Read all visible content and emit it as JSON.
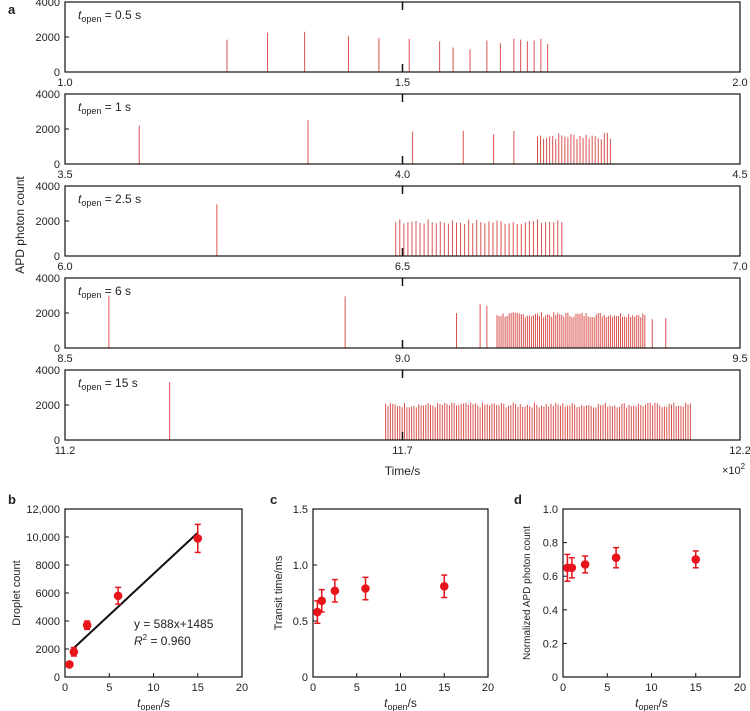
{
  "panel_labels": [
    "a",
    "b",
    "c",
    "d"
  ],
  "chart_data": [
    {
      "panel": "a",
      "type": "line",
      "ylabel": "APD photon count",
      "xlabel": "Time/s",
      "x_multiplier_label": "×10",
      "x_multiplier_exp": "2",
      "line_color": "#d9534f",
      "yticks": [
        "0",
        "2000",
        "4000"
      ],
      "ylim": [
        0,
        4000
      ],
      "subplots": [
        {
          "label_prefix": "t",
          "label_sub": "open",
          "label_suffix": " = 0.5 s",
          "xlim": [
            1.0,
            2.0
          ],
          "xticks": [
            "1.0",
            "1.5",
            "2.0"
          ],
          "spikes": [
            [
              1.24,
              1850
            ],
            [
              1.3,
              2250
            ],
            [
              1.355,
              2300
            ],
            [
              1.42,
              2050
            ],
            [
              1.465,
              1950
            ],
            [
              1.51,
              1900
            ],
            [
              1.555,
              1750
            ],
            [
              1.575,
              1400
            ],
            [
              1.6,
              1300
            ],
            [
              1.625,
              1800
            ],
            [
              1.645,
              1650
            ],
            [
              1.665,
              1900
            ],
            [
              1.675,
              1850
            ],
            [
              1.685,
              1750
            ],
            [
              1.695,
              1800
            ],
            [
              1.705,
              1900
            ],
            [
              1.715,
              1600
            ]
          ]
        },
        {
          "label_prefix": "t",
          "label_sub": "open",
          "label_suffix": " = 1 s",
          "xlim": [
            3.5,
            4.5
          ],
          "xticks": [
            "3.5",
            "4.0",
            "4.5"
          ],
          "spikes": [
            [
              3.61,
              2200
            ],
            [
              3.86,
              2500
            ],
            [
              4.015,
              1850
            ],
            [
              4.09,
              1900
            ],
            [
              4.135,
              1700
            ],
            [
              4.165,
              1900
            ]
          ],
          "dense": [
            {
              "start": 4.2,
              "end": 4.31,
              "step": 0.0045,
              "height": 1600,
              "jitter": 200
            }
          ]
        },
        {
          "label_prefix": "t",
          "label_sub": "open",
          "label_suffix": " = 2.5 s",
          "xlim": [
            6.0,
            7.0
          ],
          "xticks": [
            "6.0",
            "6.5",
            "7.0"
          ],
          "spikes": [
            [
              6.225,
              2950
            ]
          ],
          "dense": [
            {
              "start": 6.49,
              "end": 6.74,
              "step": 0.006,
              "height": 1950,
              "jitter": 150
            }
          ]
        },
        {
          "label_prefix": "t",
          "label_sub": "open",
          "label_suffix": " = 6 s",
          "xlim": [
            8.5,
            9.5
          ],
          "xticks": [
            "8.5",
            "9.0",
            "9.5"
          ],
          "spikes": [
            [
              8.565,
              3000
            ],
            [
              8.915,
              2950
            ],
            [
              9.08,
              2000
            ],
            [
              9.115,
              2500
            ],
            [
              9.125,
              2400
            ]
          ],
          "dense": [
            {
              "start": 9.14,
              "end": 9.36,
              "step": 0.003,
              "height": 1900,
              "jitter": 150
            }
          ],
          "tail_spikes": [
            [
              9.37,
              1650
            ],
            [
              9.39,
              1700
            ]
          ]
        },
        {
          "label_prefix": "t",
          "label_sub": "open",
          "label_suffix": " = 15 s",
          "xlim": [
            11.2,
            12.2
          ],
          "xticks": [
            "11.2",
            "11.7",
            "12.2"
          ],
          "spikes": [
            [
              11.355,
              3300
            ]
          ],
          "dense": [
            {
              "start": 11.675,
              "end": 12.13,
              "step": 0.0035,
              "height": 2000,
              "jitter": 150
            }
          ]
        }
      ]
    },
    {
      "panel": "b",
      "type": "scatter",
      "ylabel": "Droplet count",
      "xlabel_prefix": "t",
      "xlabel_sub": "open",
      "xlabel_suffix": "/s",
      "xlim": [
        0,
        20
      ],
      "ylim": [
        0,
        12000
      ],
      "xticks": [
        "0",
        "5",
        "10",
        "15",
        "20"
      ],
      "yticks": [
        "0",
        "2000",
        "4000",
        "6000",
        "8000",
        "10,000",
        "12,000"
      ],
      "x": [
        0.5,
        1,
        2.5,
        6,
        15
      ],
      "y": [
        900,
        1800,
        3700,
        5800,
        9900
      ],
      "yerr": [
        150,
        300,
        300,
        600,
        1000
      ],
      "fit": {
        "slope": 588,
        "intercept": 1485,
        "x_range": [
          1,
          15
        ]
      },
      "equation_text": "y = 588x+1485",
      "r2_prefix": "R",
      "r2_exp": "2",
      "r2_suffix": " = 0.960",
      "marker_color": "#e8141b"
    },
    {
      "panel": "c",
      "type": "scatter",
      "ylabel": "Transit time/ms",
      "xlabel_prefix": "t",
      "xlabel_sub": "open",
      "xlabel_suffix": "/s",
      "xlim": [
        0,
        20
      ],
      "ylim": [
        0,
        1.5
      ],
      "xticks": [
        "0",
        "5",
        "10",
        "15",
        "20"
      ],
      "yticks": [
        "0",
        "0.5",
        "1.0",
        "1.5"
      ],
      "x": [
        0.5,
        1,
        2.5,
        6,
        15
      ],
      "y": [
        0.58,
        0.68,
        0.77,
        0.79,
        0.81
      ],
      "yerr": [
        0.1,
        0.1,
        0.1,
        0.1,
        0.1
      ],
      "marker_color": "#e8141b"
    },
    {
      "panel": "d",
      "type": "scatter",
      "ylabel": "Normalized APD photon count",
      "xlabel_prefix": "t",
      "xlabel_sub": "open",
      "xlabel_suffix": "/s",
      "xlim": [
        0,
        20
      ],
      "ylim": [
        0,
        1.0
      ],
      "xticks": [
        "0",
        "5",
        "10",
        "15",
        "20"
      ],
      "yticks": [
        "0",
        "0.2",
        "0.4",
        "0.6",
        "0.8",
        "1.0"
      ],
      "x": [
        0.5,
        1,
        2.5,
        6,
        15
      ],
      "y": [
        0.65,
        0.65,
        0.67,
        0.71,
        0.7
      ],
      "yerr": [
        0.08,
        0.06,
        0.05,
        0.06,
        0.05
      ],
      "marker_color": "#e8141b"
    }
  ]
}
